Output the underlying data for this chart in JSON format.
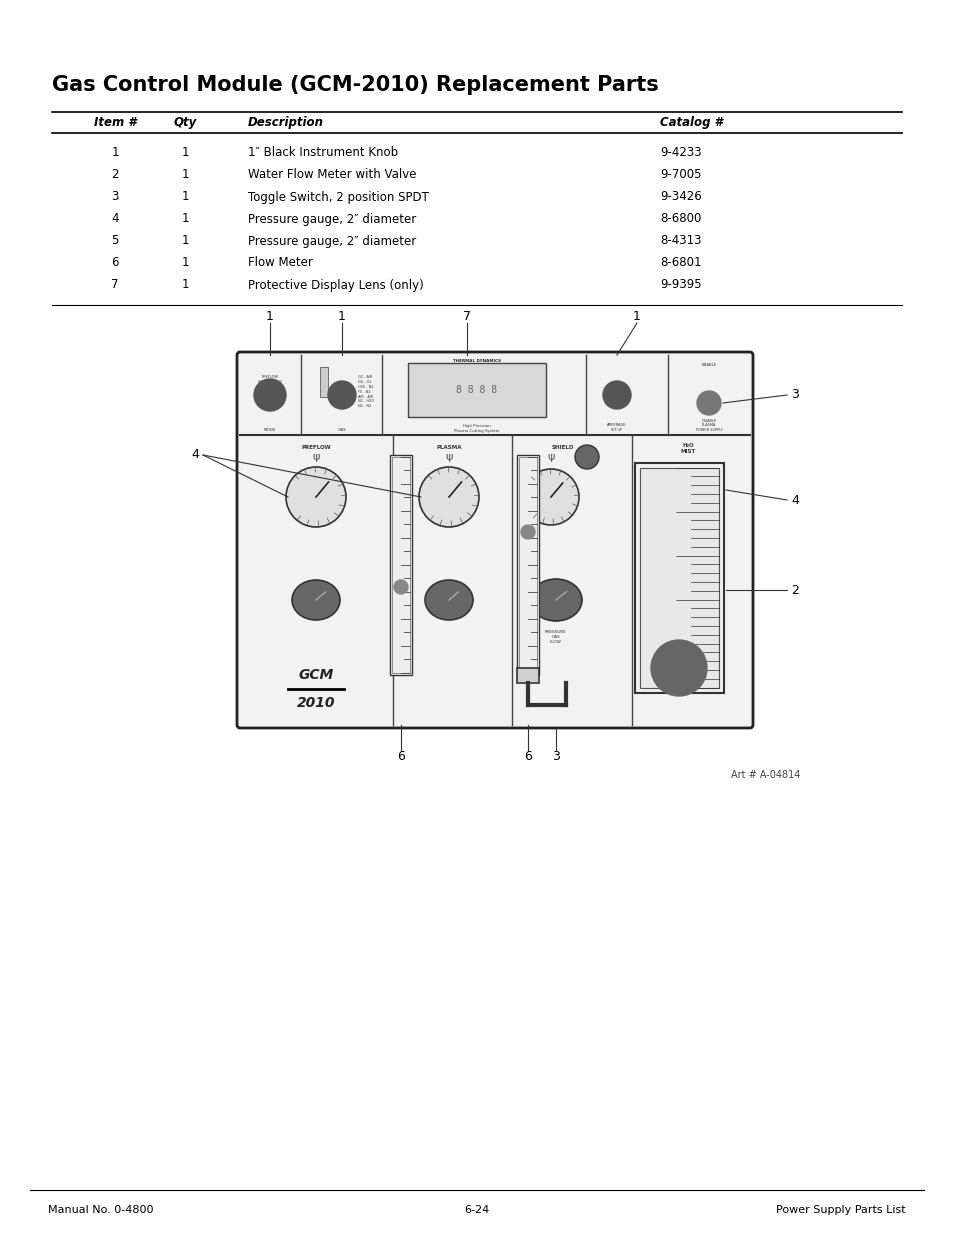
{
  "title": "Gas Control Module (GCM-2010) Replacement Parts",
  "title_fontsize": 15,
  "title_fontweight": "bold",
  "header": [
    "Item #",
    "Qty",
    "Description",
    "Catalog #"
  ],
  "rows": [
    [
      "1",
      "1",
      "1″ Black Instrument Knob",
      "9-4233"
    ],
    [
      "2",
      "1",
      "Water Flow Meter with Valve",
      "9-7005"
    ],
    [
      "3",
      "1",
      "Toggle Switch, 2 position SPDT",
      "9-3426"
    ],
    [
      "4",
      "1",
      "Pressure gauge, 2″ diameter",
      "8-6800"
    ],
    [
      "5",
      "1",
      "Pressure gauge, 2″ diameter",
      "8-4313"
    ],
    [
      "6",
      "1",
      "Flow Meter",
      "8-6801"
    ],
    [
      "7",
      "1",
      "Protective Display Lens (only)",
      "9-9395"
    ]
  ],
  "footer_left": "Manual No. 0-4800",
  "footer_center": "6-24",
  "footer_right": "Power Supply Parts List",
  "art_caption": "Art # A-04814",
  "bg_color": "#ffffff",
  "text_color": "#000000",
  "line_color": "#000000"
}
